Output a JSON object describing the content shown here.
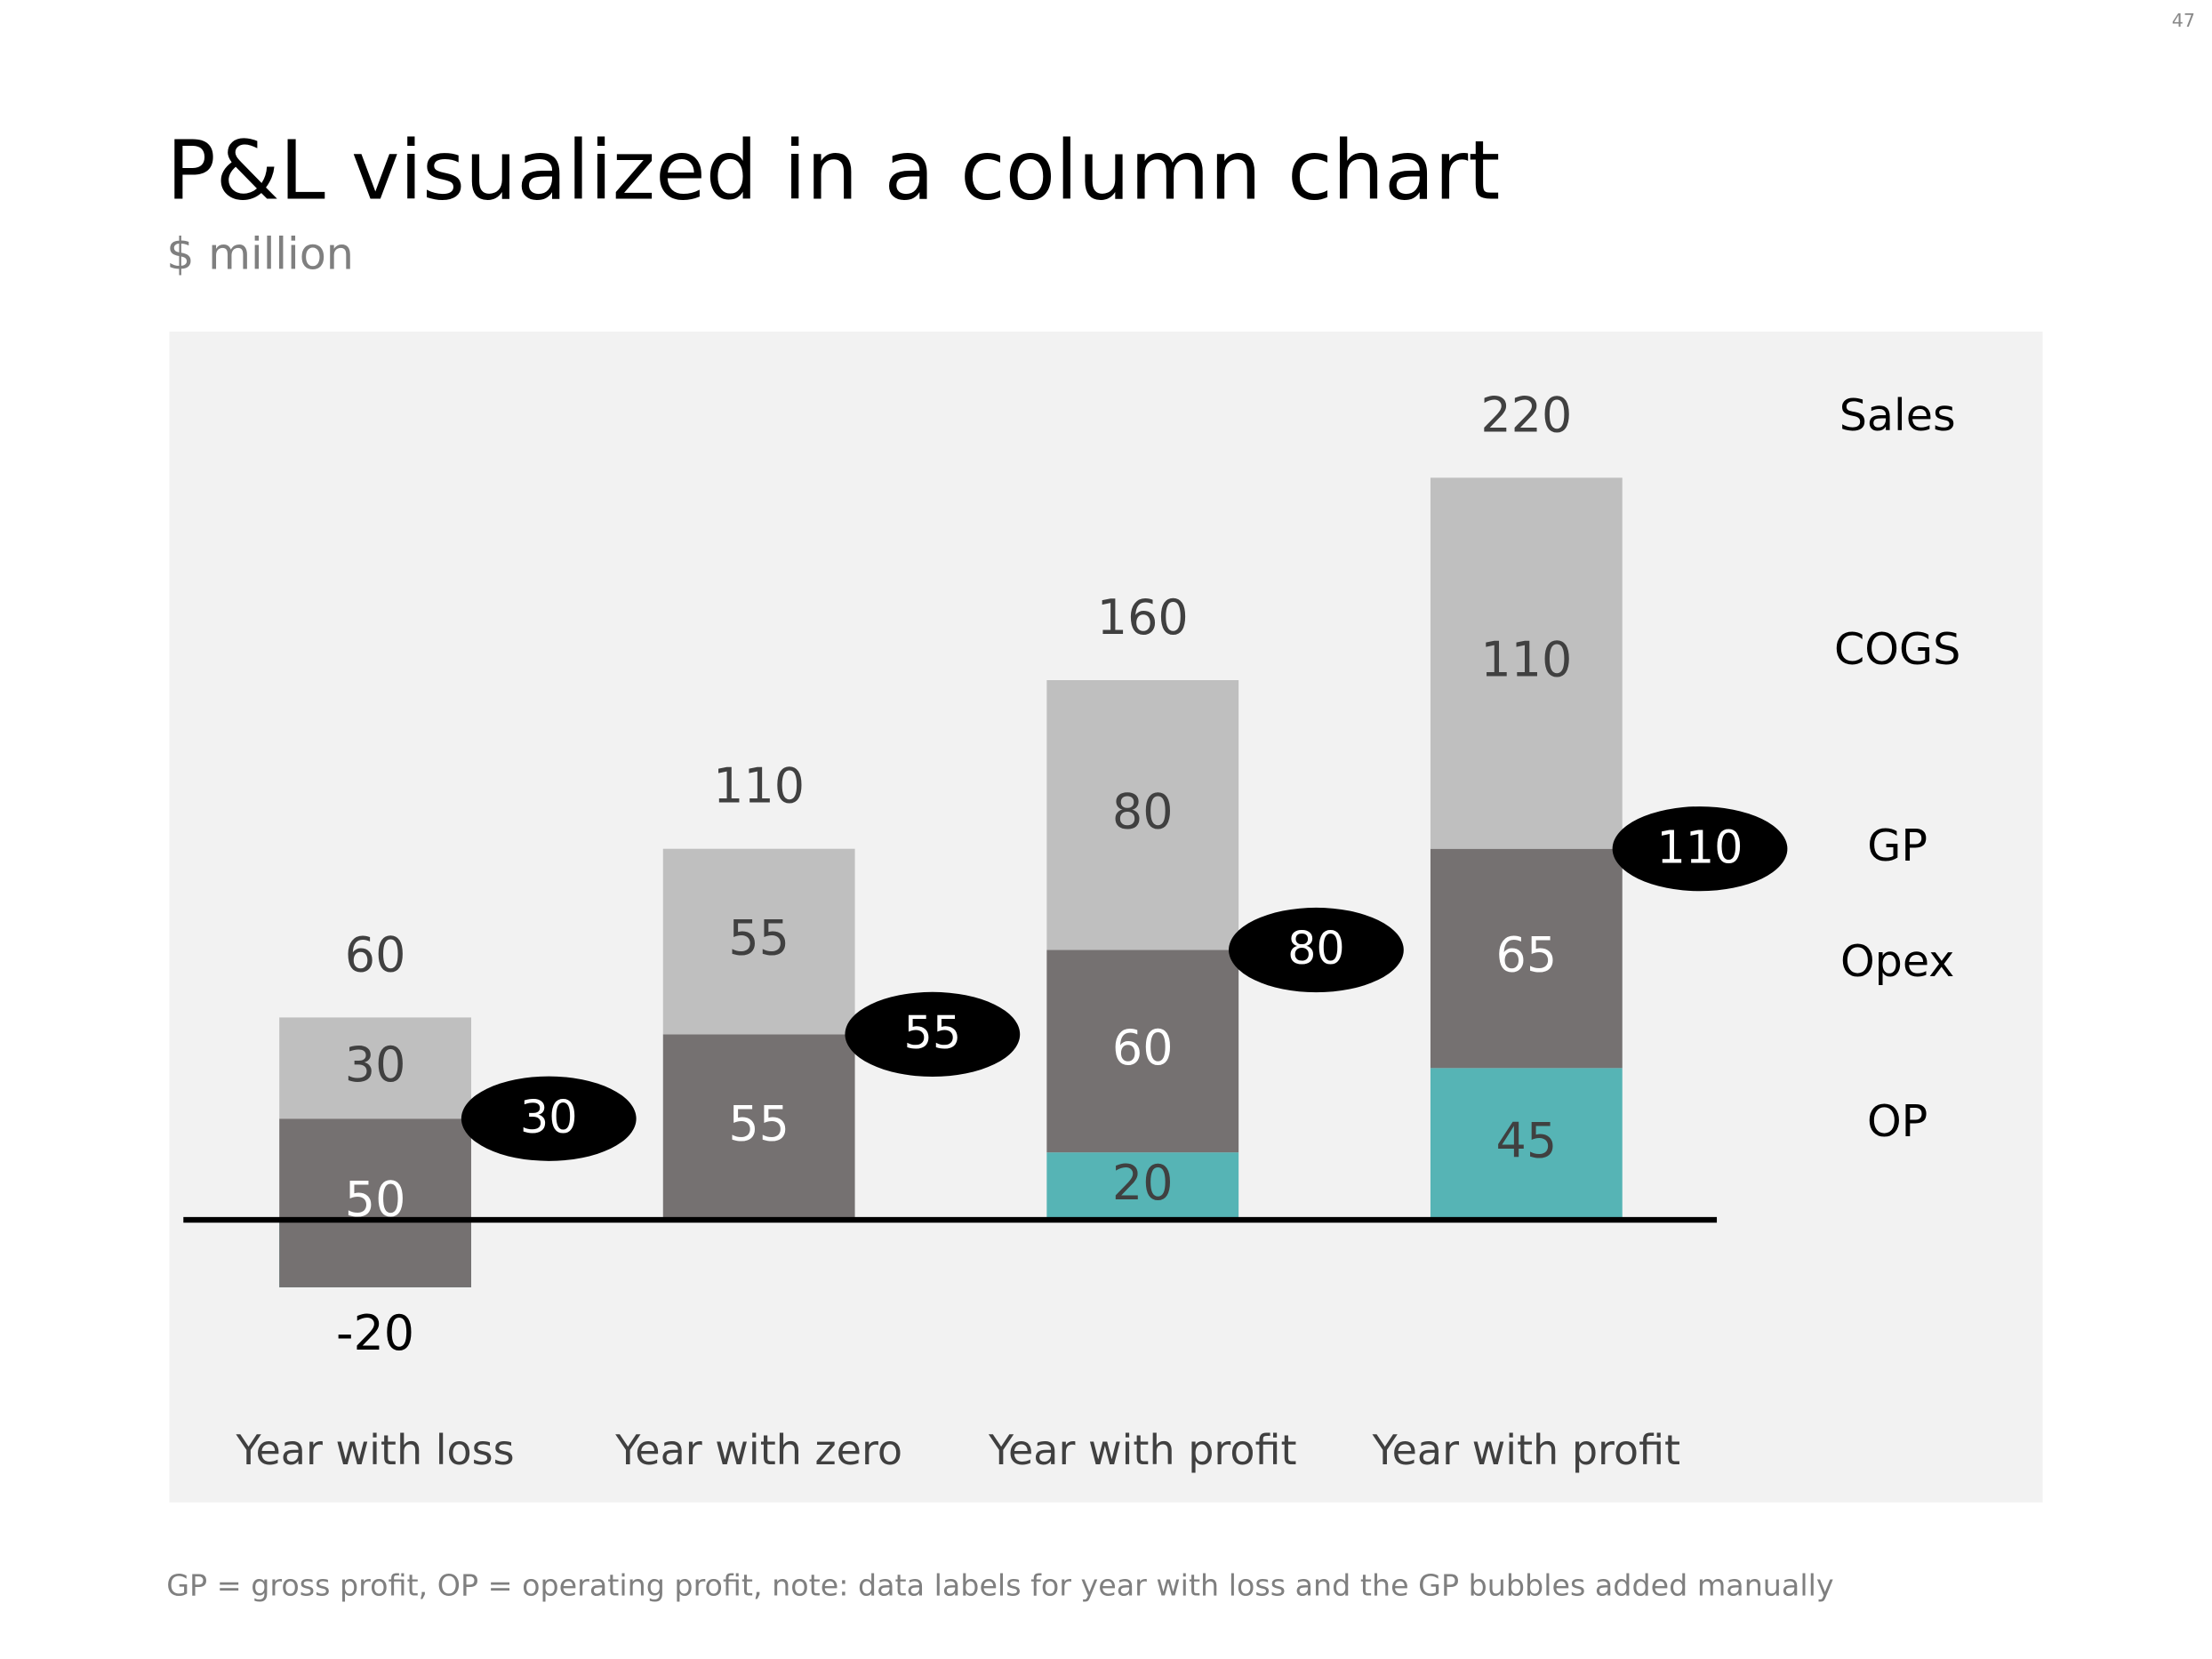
{
  "page_number": "47",
  "chart_data": {
    "type": "stacked_bar",
    "title": "P&L visualized in a column chart",
    "subtitle": "$ million",
    "categories": [
      "Year with loss",
      "Year with zero",
      "Year with profit",
      "Year with profit"
    ],
    "series": [
      {
        "name": "OP",
        "color": "#56b4b5",
        "values": [
          -20,
          0,
          20,
          45
        ]
      },
      {
        "name": "Opex",
        "color": "#757171",
        "values": [
          50,
          55,
          60,
          65
        ]
      },
      {
        "name": "COGS",
        "color": "#bfbfbf",
        "values": [
          30,
          55,
          80,
          110
        ]
      }
    ],
    "totals": {
      "name": "Sales",
      "values": [
        60,
        110,
        160,
        220
      ]
    },
    "gp": {
      "name": "GP",
      "color": "#000000",
      "values": [
        30,
        55,
        80,
        110
      ]
    },
    "ylim": [
      -80,
      260
    ],
    "note": "GP = gross profit, OP = operating profit, note: data labels for year with loss  and the GP bubbles added manually"
  }
}
